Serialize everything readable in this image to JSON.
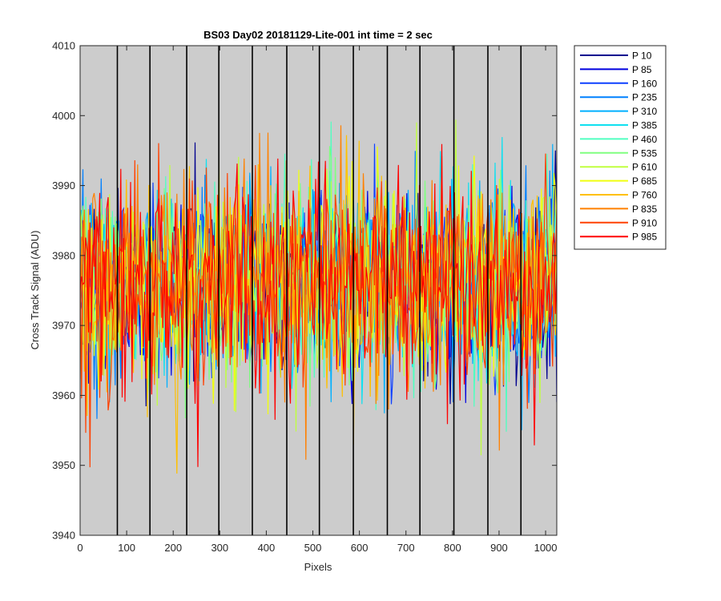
{
  "chart_data": {
    "type": "line",
    "title": "BS03 Day02 20181129-Lite-001 int time = 2 sec",
    "xlabel": "Pixels",
    "ylabel": "Cross Track Signal (ADU)",
    "xlim": [
      0,
      1024
    ],
    "ylim": [
      3940,
      4010
    ],
    "x_ticks": [
      0,
      100,
      200,
      300,
      400,
      500,
      600,
      700,
      800,
      900,
      1000
    ],
    "y_ticks": [
      3940,
      3950,
      3960,
      3970,
      3980,
      3990,
      4000,
      4010
    ],
    "background_color": "#cccccc",
    "vertical_lines_x": [
      80,
      150,
      229,
      298,
      370,
      444,
      514,
      587,
      660,
      730,
      803,
      876,
      947
    ],
    "legend_position": "outside-top-right",
    "noise_model": {
      "points_per_series": 341,
      "mean": 3976,
      "spread": 8
    },
    "series": [
      {
        "name": "P 10",
        "color": "#00008f"
      },
      {
        "name": "P 85",
        "color": "#0000df"
      },
      {
        "name": "P 160",
        "color": "#0f40ff"
      },
      {
        "name": "P 235",
        "color": "#0080ff"
      },
      {
        "name": "P 310",
        "color": "#00b0ff"
      },
      {
        "name": "P 385",
        "color": "#10e0f0"
      },
      {
        "name": "P 460",
        "color": "#50ffc0"
      },
      {
        "name": "P 535",
        "color": "#80ff80"
      },
      {
        "name": "P 610",
        "color": "#c0ff40"
      },
      {
        "name": "P 685",
        "color": "#f0ff10"
      },
      {
        "name": "P 760",
        "color": "#ffc000"
      },
      {
        "name": "P 835",
        "color": "#ff8000"
      },
      {
        "name": "P 910",
        "color": "#ff4000"
      },
      {
        "name": "P 985",
        "color": "#ff0000"
      }
    ]
  }
}
